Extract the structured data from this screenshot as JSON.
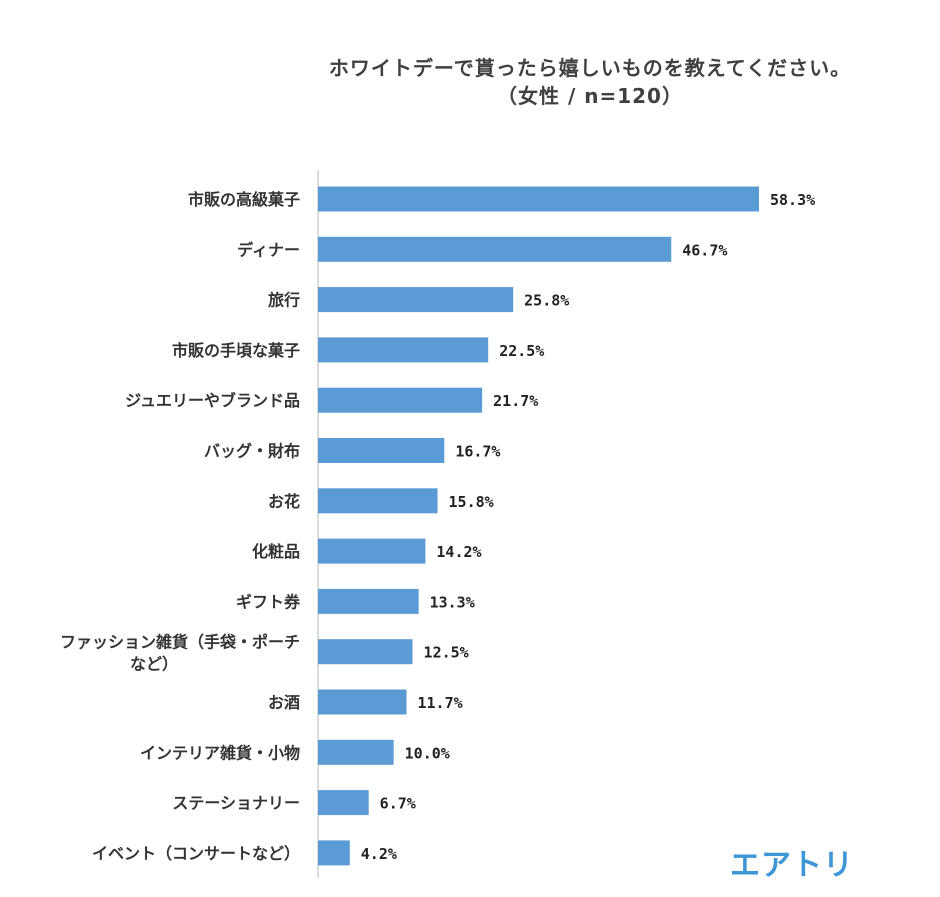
{
  "logo_text": "エアトリ",
  "colors": {
    "bar": "#5b9bd5",
    "axis": "#d0d0d0",
    "logo": "#3e96d6"
  },
  "chart_data": {
    "type": "bar",
    "orientation": "horizontal",
    "title": "ホワイトデーで貰ったら嬉しいものを教えてください。",
    "subtitle": "（女性 / n=120）",
    "categories": [
      "市販の高級菓子",
      "ディナー",
      "旅行",
      "市販の手頃な菓子",
      "ジュエリーやブランド品",
      "バッグ・財布",
      "お花",
      "化粧品",
      "ギフト券",
      [
        "ファッション雑貨（手袋・ポーチ",
        "など）"
      ],
      "お酒",
      "インテリア雑貨・小物",
      "ステーショナリー",
      "イベント（コンサートなど）"
    ],
    "values": [
      58.3,
      46.7,
      25.8,
      22.5,
      21.7,
      16.7,
      15.8,
      14.2,
      13.3,
      12.5,
      11.7,
      10.0,
      6.7,
      4.2
    ],
    "value_labels": [
      "58.3%",
      "46.7%",
      "25.8%",
      "22.5%",
      "21.7%",
      "16.7%",
      "15.8%",
      "14.2%",
      "13.3%",
      "12.5%",
      "11.7%",
      "10.0%",
      "6.7%",
      "4.2%"
    ],
    "xlim": [
      0,
      60
    ],
    "unit": "%",
    "grid": false,
    "legend": "none"
  }
}
